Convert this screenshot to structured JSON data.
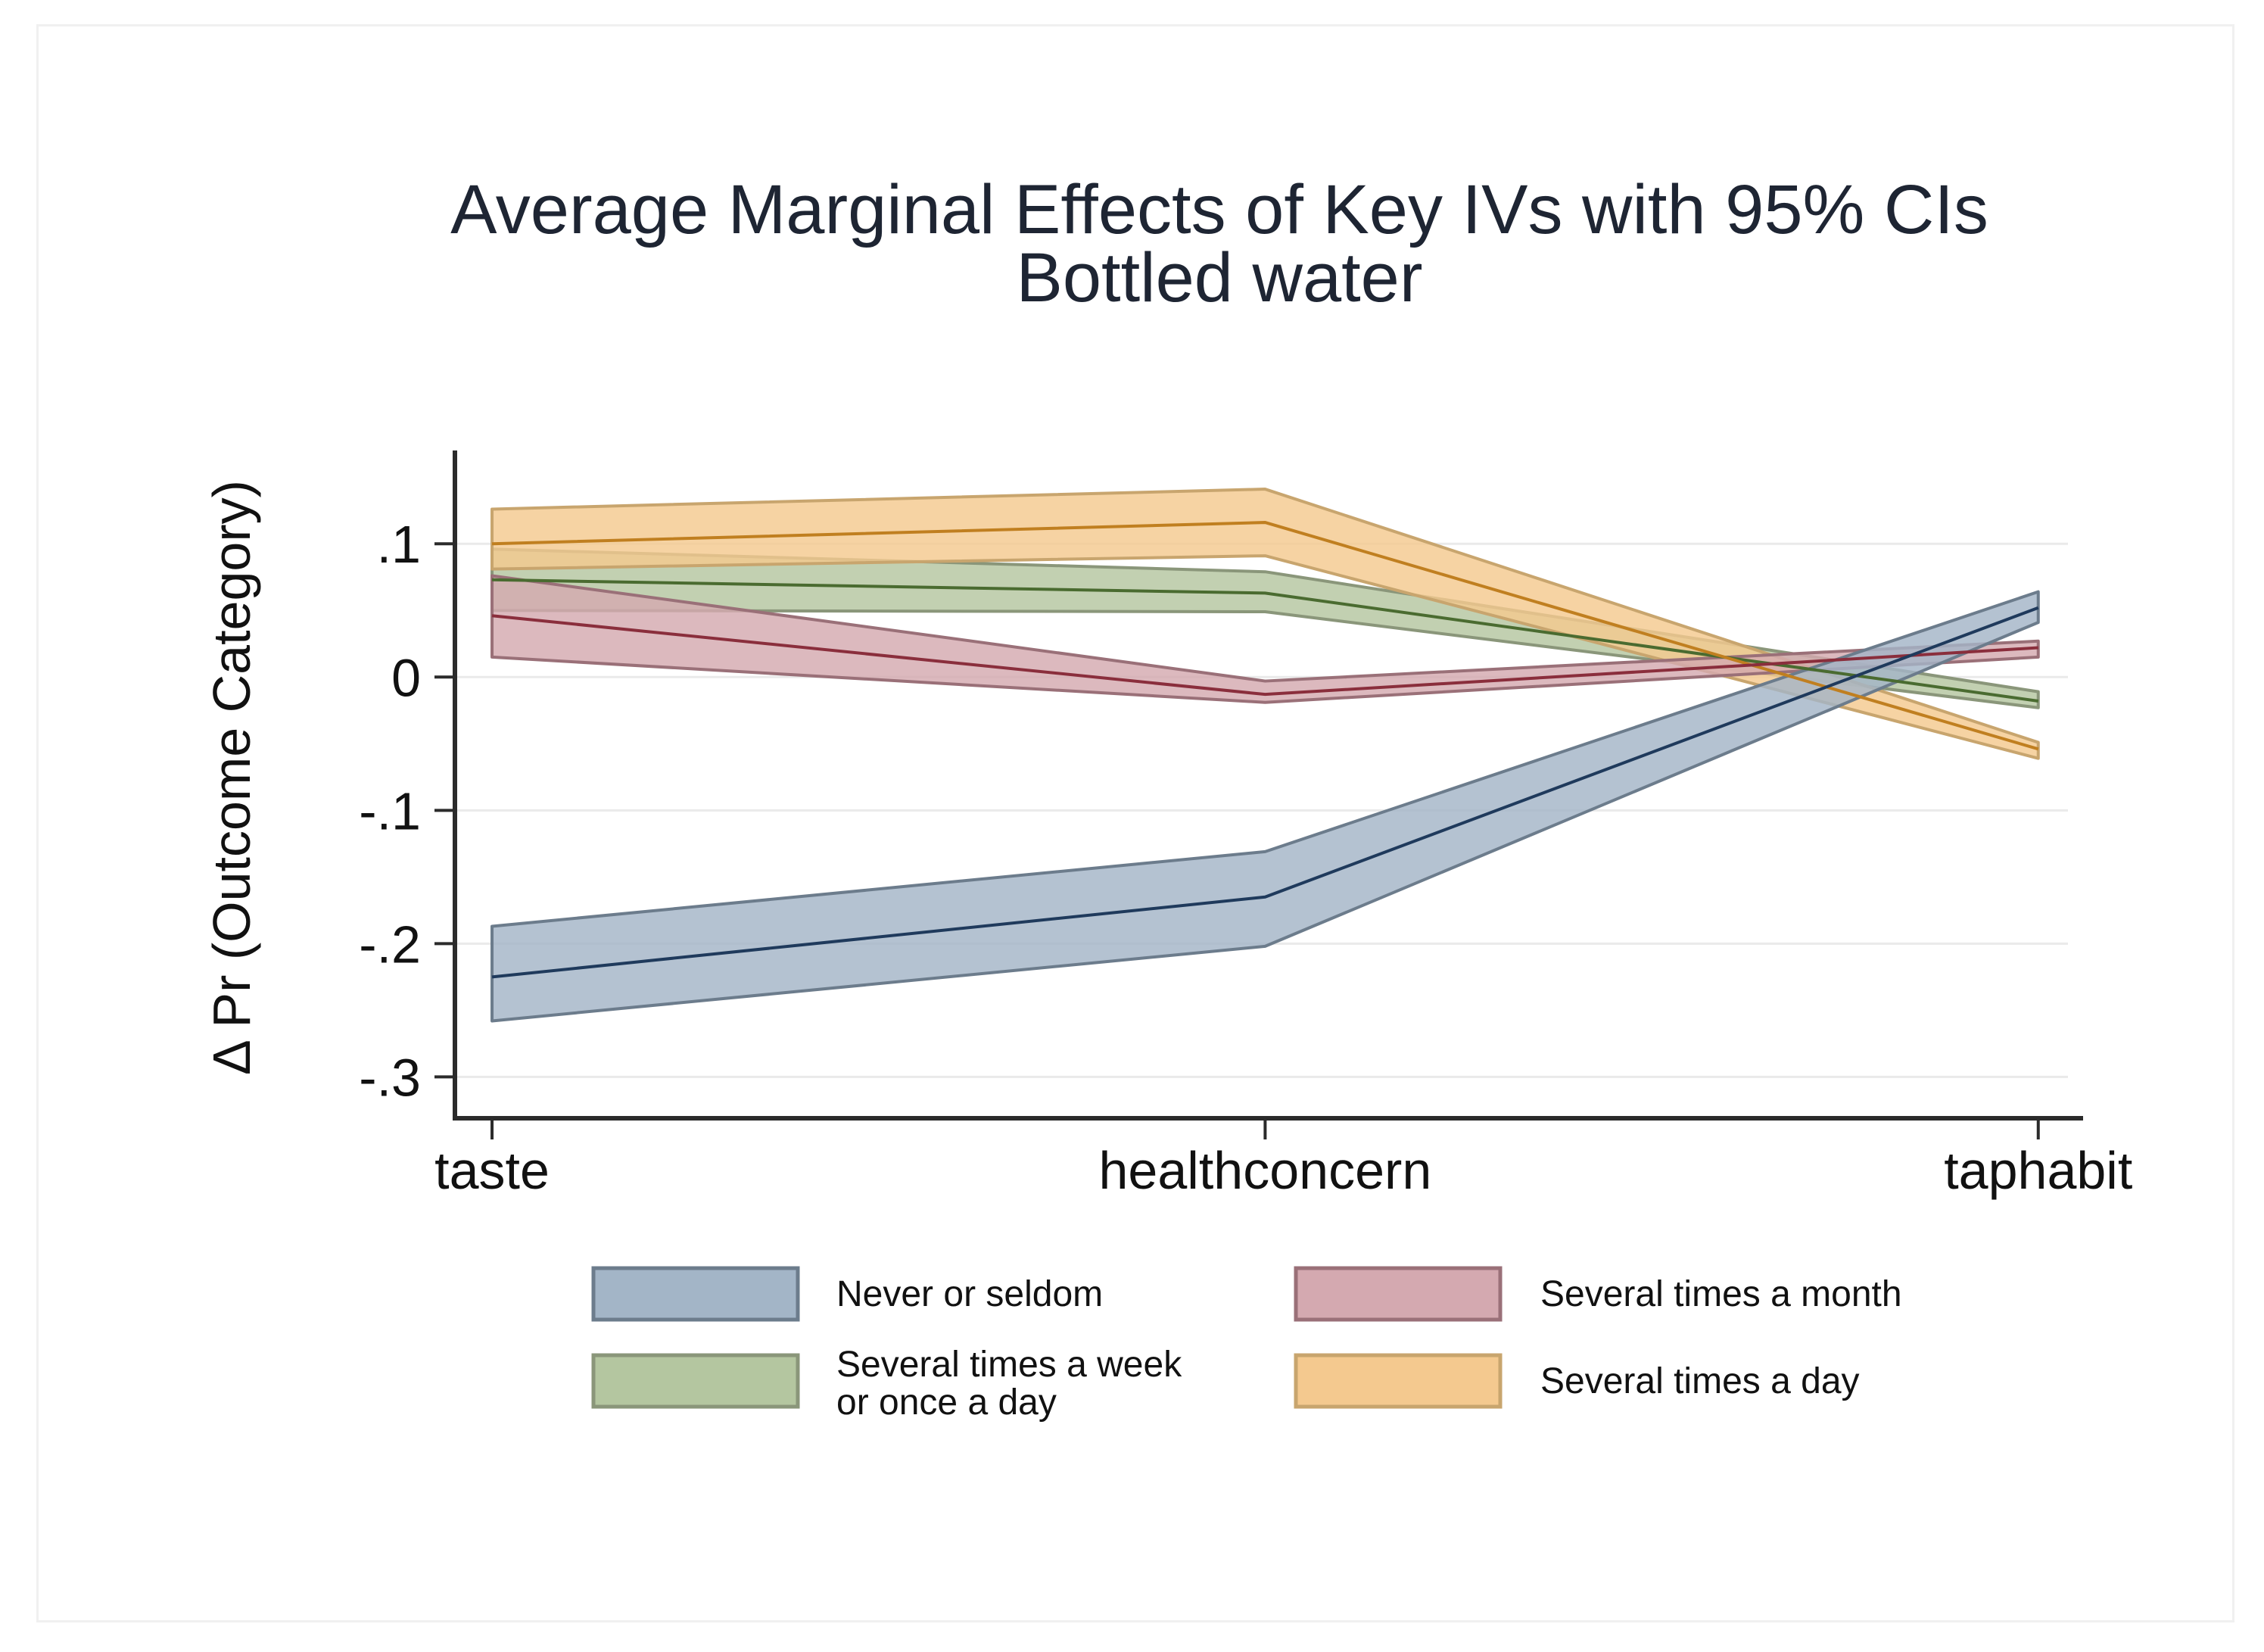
{
  "chart_data": {
    "type": "line",
    "subtype": "line with confidence bands (area)",
    "title": "Average Marginal Effects of Key IVs with 95% CIs",
    "subtitle": "Bottled water",
    "xlabel": "",
    "ylabel": "Δ  Pr (Outcome Category)",
    "categories": [
      "taste",
      "healthconcern",
      "taphabit"
    ],
    "x": [
      0,
      1,
      2
    ],
    "ylim": [
      -0.331,
      0.17
    ],
    "xlim": [
      -0.048,
      2.058
    ],
    "yticks": [
      0.1,
      0,
      -0.1,
      -0.2,
      -0.3
    ],
    "ytick_labels": [
      ".1",
      "0",
      "-.1",
      "-.2",
      "-.3"
    ],
    "grid": "horizontal",
    "legend_position": "bottom",
    "series": [
      {
        "name": "Never or seldom",
        "fill": "#a3b5c7",
        "line": "#1f3a5c",
        "edge": "#6c7c8c",
        "values": [
          -0.225,
          -0.165,
          0.052
        ],
        "ci_lower": [
          -0.258,
          -0.202,
          0.041
        ],
        "ci_upper": [
          -0.187,
          -0.131,
          0.064
        ]
      },
      {
        "name": "Several times a month",
        "fill": "#d4a9b0",
        "line": "#8a2e3c",
        "edge": "#9a7078",
        "values": [
          0.046,
          -0.013,
          0.022
        ],
        "ci_lower": [
          0.015,
          -0.019,
          0.015
        ],
        "ci_upper": [
          0.076,
          -0.003,
          0.027
        ]
      },
      {
        "name": "Several times a week or once a day",
        "legend_lines": [
          "Several times a week",
          "or once a day"
        ],
        "fill": "#b4c6a0",
        "line": "#4a6b30",
        "edge": "#8a967a",
        "values": [
          0.073,
          0.063,
          -0.018
        ],
        "ci_lower": [
          0.05,
          0.049,
          -0.023
        ],
        "ci_upper": [
          0.096,
          0.079,
          -0.011
        ]
      },
      {
        "name": "Several times a day",
        "fill": "#f4c98f",
        "line": "#c07f20",
        "edge": "#c8a56e",
        "values": [
          0.1,
          0.116,
          -0.054
        ],
        "ci_lower": [
          0.081,
          0.091,
          -0.061
        ],
        "ci_upper": [
          0.126,
          0.141,
          -0.049
        ]
      }
    ],
    "draw_order": [
      2,
      3,
      1,
      0
    ],
    "legend_order": [
      {
        "series": 0,
        "label_lines": [
          "Never or seldom"
        ]
      },
      {
        "series": 1,
        "label_lines": [
          "Several times a month"
        ]
      },
      {
        "series": 2,
        "label_lines": [
          "Several times a week",
          "or once a day"
        ]
      },
      {
        "series": 3,
        "label_lines": [
          "Several times a day"
        ]
      }
    ]
  }
}
